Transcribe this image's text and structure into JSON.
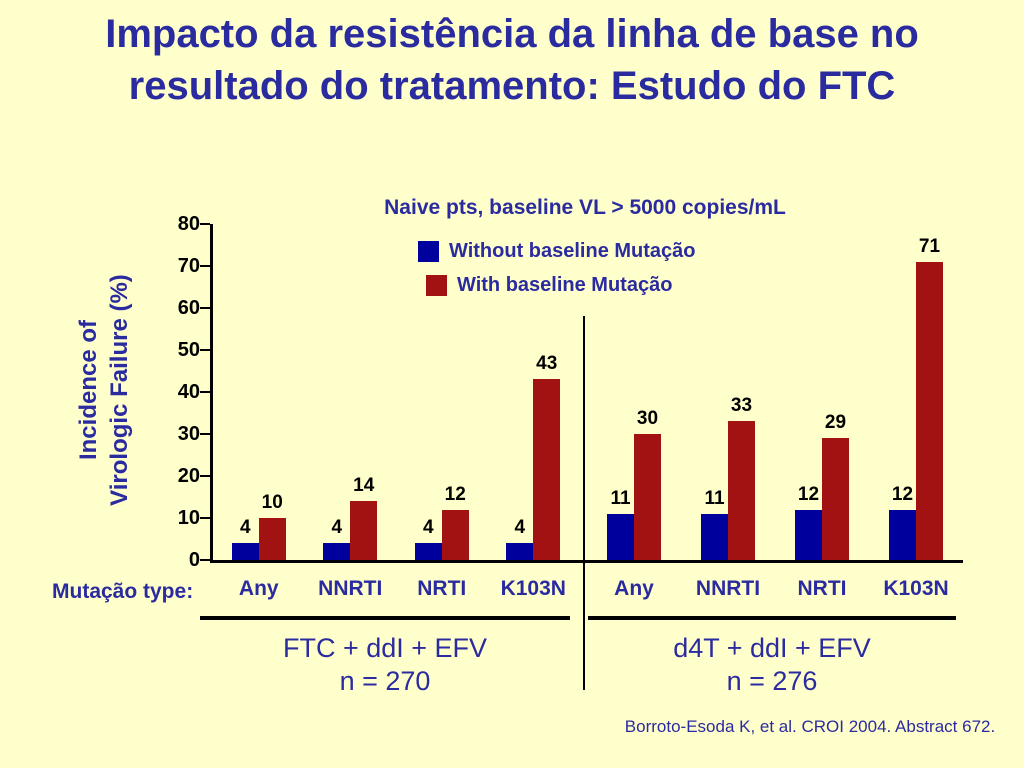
{
  "slide": {
    "title": "Impacto da resistência da linha de base no resultado do tratamento: Estudo do FTC",
    "footer": "Borroto-Esoda K, et al. CROI 2004. Abstract 672."
  },
  "colors": {
    "background": "#FFFFCC",
    "accent_navy": "#2B2BA0",
    "bar_blue": "#00009C",
    "bar_red": "#A31212"
  },
  "chart_data": {
    "type": "bar",
    "title": "Naive pts, baseline VL > 5000 copies/mL",
    "ylabel": "Incidence of Virologic Failure (%)",
    "ylabel_lines": [
      "Incidence of",
      "Virologic Failure (%)"
    ],
    "ylim": [
      0,
      80
    ],
    "yticks": [
      0,
      10,
      20,
      30,
      40,
      50,
      60,
      70,
      80
    ],
    "grid": false,
    "legend_position": "top",
    "legend": [
      {
        "label": "Without baseline Mutação",
        "color": "#00009C"
      },
      {
        "label": "With baseline Mutação",
        "color": "#A31212"
      }
    ],
    "mutation_type_label": "Mutação type:",
    "groups": [
      {
        "label": "FTC + ddI + EFV",
        "n_label": "n = 270",
        "categories": [
          "Any",
          "NNRTI",
          "NRTI",
          "K103N"
        ],
        "series": [
          {
            "name": "Without baseline Mutação",
            "values": [
              4,
              4,
              4,
              4
            ]
          },
          {
            "name": "With baseline Mutação",
            "values": [
              10,
              14,
              12,
              43
            ]
          }
        ]
      },
      {
        "label": "d4T + ddI + EFV",
        "n_label": "n = 276",
        "categories": [
          "Any",
          "NNRTI",
          "NRTI",
          "K103N"
        ],
        "series": [
          {
            "name": "Without baseline Mutação",
            "values": [
              11,
              11,
              12,
              12
            ]
          },
          {
            "name": "With baseline Mutação",
            "values": [
              30,
              33,
              29,
              71
            ]
          }
        ]
      }
    ]
  }
}
